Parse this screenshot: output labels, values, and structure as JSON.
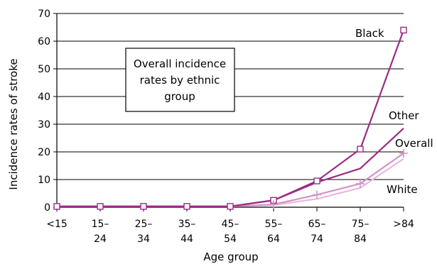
{
  "chart_data": {
    "type": "line",
    "xlabel": "Age group",
    "ylabel": "Incidence rates of stroke",
    "ylim": [
      0,
      70
    ],
    "yticks": [
      0,
      10,
      20,
      30,
      40,
      50,
      60,
      70
    ],
    "grid": "horizontal",
    "categories": [
      [
        "<15"
      ],
      [
        "15–",
        "24"
      ],
      [
        "25–",
        "34"
      ],
      [
        "35–",
        "44"
      ],
      [
        "45–",
        "54"
      ],
      [
        "55–",
        "64"
      ],
      [
        "65–",
        "74"
      ],
      [
        "75–",
        "84"
      ],
      [
        ">84"
      ]
    ],
    "annotation": {
      "lines": [
        "Overall incidence",
        "rates by ethnic",
        "group"
      ]
    },
    "series": [
      {
        "name": "Black",
        "color": "#9b2b84",
        "marker": "square",
        "values": [
          0.3,
          0.3,
          0.3,
          0.3,
          0.3,
          2.5,
          9.5,
          21,
          64
        ]
      },
      {
        "name": "Other",
        "color": "#9b2b84",
        "marker": "none",
        "values": [
          0.3,
          0.3,
          0.3,
          0.3,
          0.3,
          2.5,
          9,
          14,
          28.5
        ]
      },
      {
        "name": "Overall",
        "color": "#d393c6",
        "marker": "plus",
        "values": [
          0.3,
          0.3,
          0.3,
          0.3,
          0.3,
          1,
          4.5,
          8.5,
          19.5
        ]
      },
      {
        "name": "White",
        "color": "#e7b9dc",
        "marker": "none",
        "values": [
          0.3,
          0.3,
          0.3,
          0.3,
          0.3,
          0.8,
          3,
          7,
          17.5
        ]
      }
    ]
  }
}
